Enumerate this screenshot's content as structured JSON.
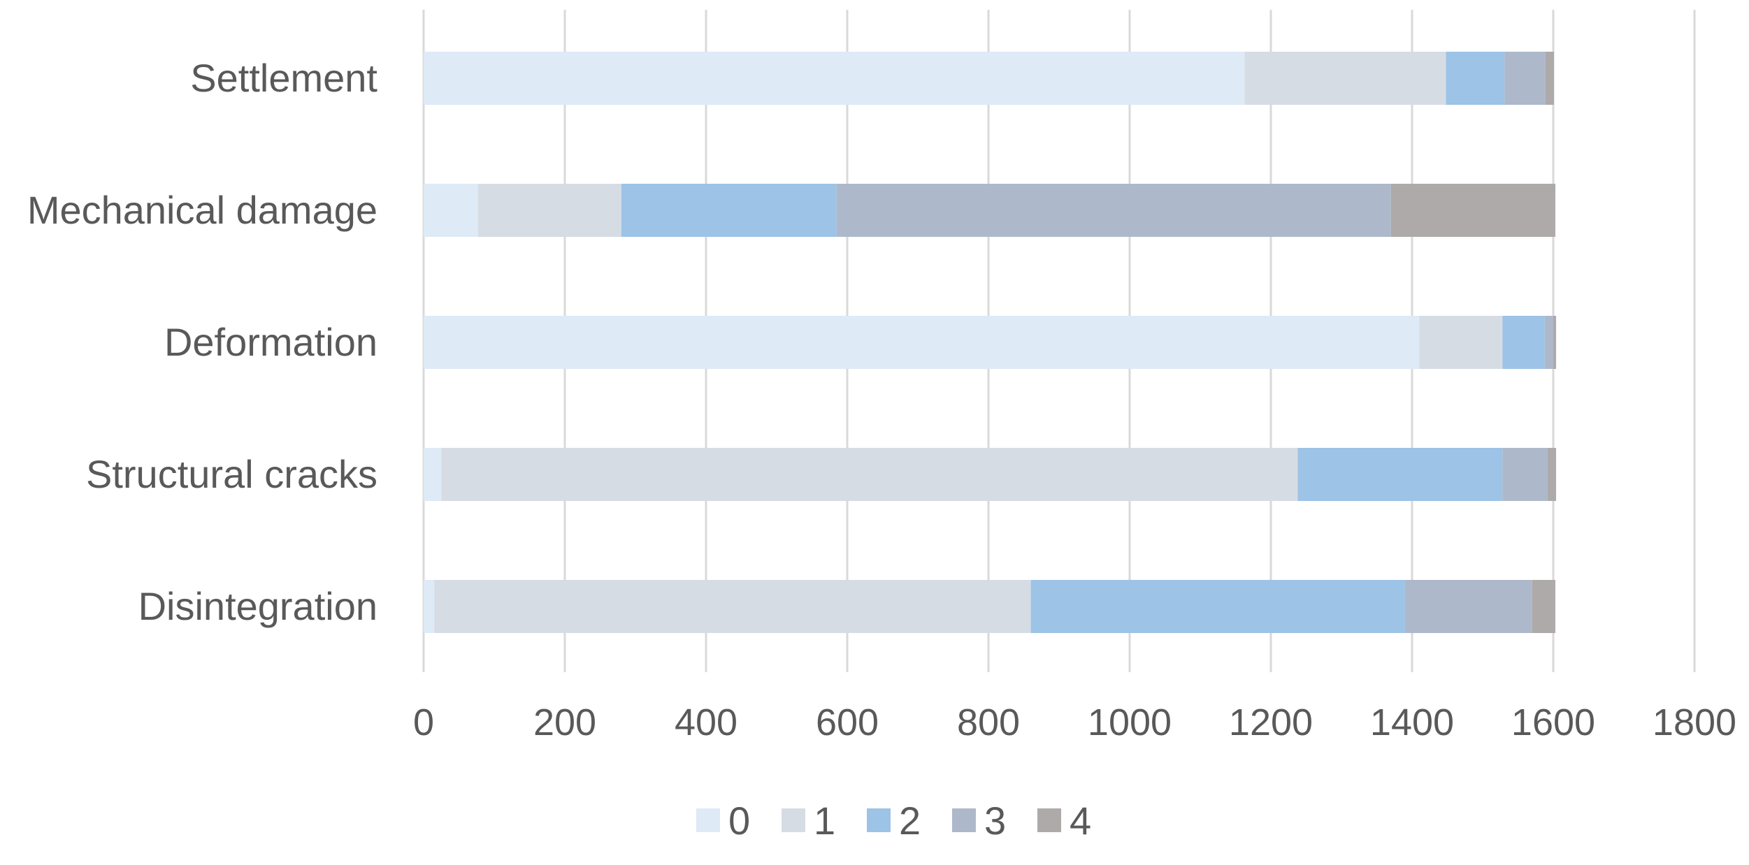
{
  "chart_data": {
    "type": "bar",
    "orientation": "horizontal",
    "stacked": true,
    "title": "",
    "xlabel": "",
    "ylabel": "",
    "categories": [
      "Settlement",
      "Mechanical damage",
      "Deformation",
      "Structural cracks",
      "Disintegration"
    ],
    "series": [
      {
        "name": "0",
        "color": "#deeaf6",
        "values": [
          1163,
          77,
          1410,
          25,
          15
        ]
      },
      {
        "name": "1",
        "color": "#d6dce4",
        "values": [
          285,
          203,
          118,
          1213,
          845
        ]
      },
      {
        "name": "2",
        "color": "#9dc3e6",
        "values": [
          83,
          305,
          60,
          290,
          530
        ]
      },
      {
        "name": "3",
        "color": "#adb9ca",
        "values": [
          58,
          785,
          12,
          64,
          180
        ]
      },
      {
        "name": "4",
        "color": "#aeaaaa",
        "values": [
          12,
          233,
          4,
          12,
          33
        ]
      }
    ],
    "xlim": [
      0,
      1800
    ],
    "xticks": [
      "0",
      "200",
      "400",
      "600",
      "800",
      "1000",
      "1200",
      "1400",
      "1600",
      "1800"
    ],
    "grid": "vertical",
    "legend": "bottom"
  }
}
